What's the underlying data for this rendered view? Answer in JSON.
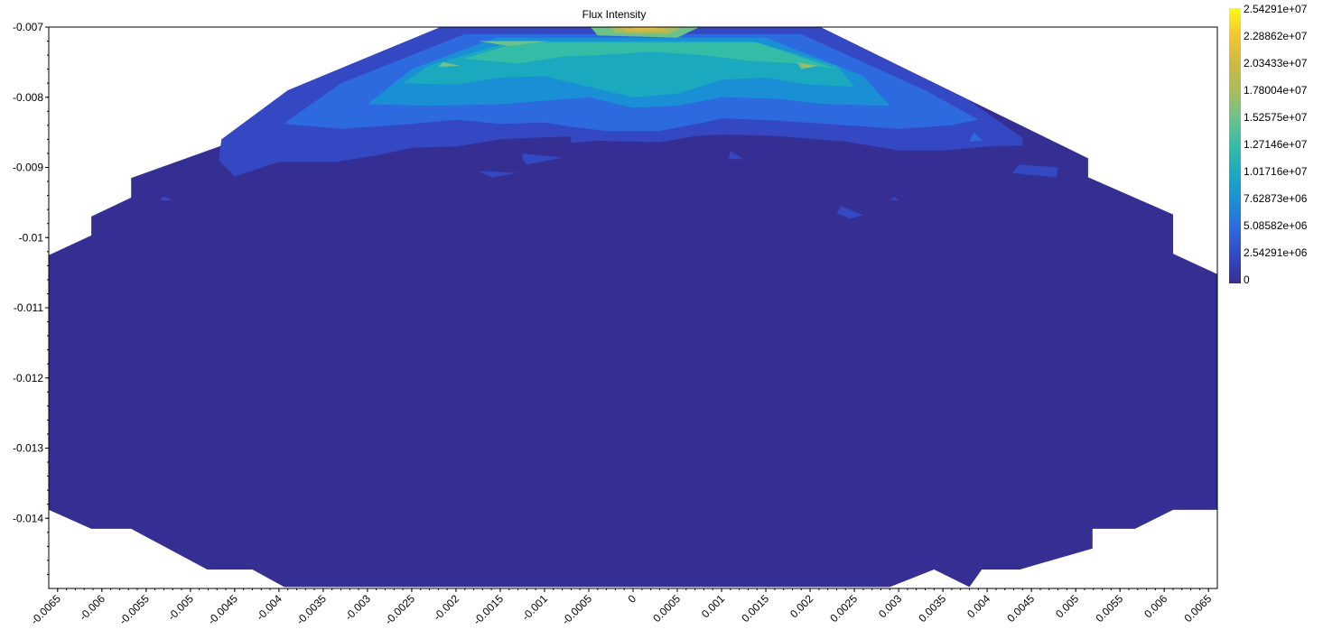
{
  "chart_data": {
    "type": "heatmap",
    "title": "Flux Intensity",
    "xlabel": "",
    "ylabel": "",
    "xlim": [
      -0.0066,
      0.0066
    ],
    "ylim": [
      -0.015,
      -0.007
    ],
    "x_ticks": [
      "-0.0065",
      "-0.006",
      "-0.0055",
      "-0.005",
      "-0.0045",
      "-0.004",
      "-0.0035",
      "-0.003",
      "-0.0025",
      "-0.002",
      "-0.0015",
      "-0.001",
      "-0.0005",
      "0",
      "0.0005",
      "0.001",
      "0.0015",
      "0.002",
      "0.0025",
      "0.003",
      "0.0035",
      "0.004",
      "0.0045",
      "0.005",
      "0.0055",
      "0.006",
      "0.0065"
    ],
    "x_tick_values": [
      -0.0065,
      -0.006,
      -0.0055,
      -0.005,
      -0.0045,
      -0.004,
      -0.0035,
      -0.003,
      -0.0025,
      -0.002,
      -0.0015,
      -0.001,
      -0.0005,
      0,
      0.0005,
      0.001,
      0.0015,
      0.002,
      0.0025,
      0.003,
      0.0035,
      0.004,
      0.0045,
      0.005,
      0.0055,
      0.006,
      0.0065
    ],
    "y_ticks": [
      "-0.007",
      "-0.008",
      "-0.009",
      "-0.01",
      "-0.011",
      "-0.012",
      "-0.013",
      "-0.014"
    ],
    "y_tick_values": [
      -0.007,
      -0.008,
      -0.009,
      -0.01,
      -0.011,
      -0.012,
      -0.013,
      -0.014
    ],
    "colorbar": {
      "labels": [
        "2.54291e+07",
        "2.28862e+07",
        "2.03433e+07",
        "1.78004e+07",
        "1.52575e+07",
        "1.27146e+07",
        "1.01716e+07",
        "7.62873e+06",
        "5.08582e+06",
        "2.54291e+06",
        "0"
      ],
      "min": 0,
      "max": 25429100,
      "colors": [
        "#fcfc12",
        "#f2c530",
        "#cfb946",
        "#a9bc5c",
        "#6cc28b",
        "#35bca6",
        "#1ba9c0",
        "#1b8fd5",
        "#2d6ae0",
        "#3448c4",
        "#352f94"
      ]
    },
    "domain_boundary": [
      [
        -0.0066,
        -0.01025
      ],
      [
        -0.00612,
        -0.00997
      ],
      [
        -0.00612,
        -0.0097
      ],
      [
        -0.00567,
        -0.00943
      ],
      [
        -0.00567,
        -0.00915
      ],
      [
        -0.00394,
        -0.00837
      ],
      [
        -0.00207,
        -0.00697
      ],
      [
        0.00207,
        -0.00697
      ],
      [
        0.00514,
        -0.00887
      ],
      [
        0.00514,
        -0.00914
      ],
      [
        0.0061,
        -0.00967
      ],
      [
        0.0061,
        -0.01023
      ],
      [
        0.0066,
        -0.01052
      ],
      [
        0.0066,
        -0.01388
      ],
      [
        0.0061,
        -0.01388
      ],
      [
        0.00567,
        -0.01415
      ],
      [
        0.00519,
        -0.01415
      ],
      [
        0.00519,
        -0.01443
      ],
      [
        0.00437,
        -0.01473
      ],
      [
        0.00394,
        -0.01473
      ],
      [
        0.0038,
        -0.01498
      ],
      [
        0.0034,
        -0.01473
      ],
      [
        0.0029,
        -0.01498
      ],
      [
        -0.00394,
        -0.01498
      ],
      [
        -0.0043,
        -0.01473
      ],
      [
        -0.00481,
        -0.01473
      ],
      [
        -0.00567,
        -0.01415
      ],
      [
        -0.00612,
        -0.01415
      ],
      [
        -0.0066,
        -0.01388
      ]
    ],
    "contours": [
      {
        "level": 2542910,
        "polygons": [
          [
            [
              -0.00212,
              -0.00697
            ],
            [
              -0.0039,
              -0.0079
            ],
            [
              -0.00465,
              -0.0086
            ],
            [
              -0.00468,
              -0.0089
            ],
            [
              -0.0045,
              -0.00913
            ],
            [
              -0.004,
              -0.00892
            ],
            [
              -0.00335,
              -0.00892
            ],
            [
              -0.0029,
              -0.00883
            ],
            [
              -0.0025,
              -0.00872
            ],
            [
              -0.002,
              -0.0087
            ],
            [
              -0.0015,
              -0.0086
            ],
            [
              -0.001,
              -0.00857
            ],
            [
              -0.0007,
              -0.00856
            ],
            [
              -0.0007,
              -0.00865
            ],
            [
              -0.0004,
              -0.00862
            ],
            [
              0.0003,
              -0.00864
            ],
            [
              0.00072,
              -0.00855
            ],
            [
              0.001,
              -0.00853
            ],
            [
              0.0016,
              -0.00855
            ],
            [
              0.0024,
              -0.00863
            ],
            [
              0.003,
              -0.00876
            ],
            [
              0.0035,
              -0.00876
            ],
            [
              0.004,
              -0.0087
            ],
            [
              0.0044,
              -0.00869
            ],
            [
              0.0044,
              -0.00858
            ],
            [
              0.0038,
              -0.00805
            ],
            [
              0.00207,
              -0.00697
            ]
          ],
          [
            [
              -0.00125,
              -0.0088
            ],
            [
              -0.0008,
              -0.00886
            ],
            [
              -0.0012,
              -0.00896
            ],
            [
              -0.00125,
              -0.00888
            ]
          ],
          [
            [
              -0.00175,
              -0.00905
            ],
            [
              -0.0013,
              -0.00908
            ],
            [
              -0.0016,
              -0.00914
            ]
          ],
          [
            [
              0.0011,
              -0.00877
            ],
            [
              0.00125,
              -0.00888
            ],
            [
              0.00108,
              -0.00888
            ]
          ],
          [
            [
              0.00436,
              -0.00896
            ],
            [
              0.0048,
              -0.009
            ],
            [
              0.00478,
              -0.00914
            ],
            [
              0.00428,
              -0.00908
            ]
          ],
          [
            [
              0.00235,
              -0.00955
            ],
            [
              0.0026,
              -0.00968
            ],
            [
              0.00245,
              -0.00973
            ],
            [
              0.0023,
              -0.00965
            ]
          ],
          [
            [
              -0.0053,
              -0.00941
            ],
            [
              -0.0052,
              -0.00947
            ],
            [
              -0.00535,
              -0.00947
            ]
          ],
          [
            [
              0.00295,
              -0.00942
            ],
            [
              0.003,
              -0.00947
            ],
            [
              0.0029,
              -0.00947
            ]
          ]
        ]
      },
      {
        "level": 5085820,
        "polygons": [
          [
            [
              -0.0019,
              -0.0071
            ],
            [
              -0.0033,
              -0.0078
            ],
            [
              -0.00395,
              -0.00838
            ],
            [
              -0.0033,
              -0.00845
            ],
            [
              -0.0025,
              -0.00838
            ],
            [
              -0.002,
              -0.00832
            ],
            [
              -0.0015,
              -0.00838
            ],
            [
              -0.001,
              -0.00836
            ],
            [
              -0.0007,
              -0.00842
            ],
            [
              -0.0003,
              -0.00848
            ],
            [
              0.0003,
              -0.00848
            ],
            [
              0.0008,
              -0.00836
            ],
            [
              0.001,
              -0.0083
            ],
            [
              0.0016,
              -0.00833
            ],
            [
              0.0024,
              -0.0084
            ],
            [
              0.003,
              -0.00845
            ],
            [
              0.0036,
              -0.0084
            ],
            [
              0.0039,
              -0.00832
            ],
            [
              0.0033,
              -0.0079
            ],
            [
              0.0019,
              -0.0071
            ]
          ],
          [
            [
              0.00385,
              -0.0085
            ],
            [
              0.00395,
              -0.00862
            ],
            [
              0.0038,
              -0.00863
            ]
          ]
        ]
      },
      {
        "level": 7628730,
        "polygons": [
          [
            [
              -0.00155,
              -0.00715
            ],
            [
              -0.0025,
              -0.0076
            ],
            [
              -0.003,
              -0.0081
            ],
            [
              -0.0023,
              -0.00812
            ],
            [
              -0.0015,
              -0.0081
            ],
            [
              -0.001,
              -0.00805
            ],
            [
              -0.0005,
              -0.008
            ],
            [
              0.0,
              -0.00815
            ],
            [
              0.0005,
              -0.00812
            ],
            [
              0.001,
              -0.008
            ],
            [
              0.0016,
              -0.00802
            ],
            [
              0.0022,
              -0.0081
            ],
            [
              0.0029,
              -0.00812
            ],
            [
              0.0026,
              -0.0077
            ],
            [
              0.0015,
              -0.00715
            ]
          ]
        ]
      },
      {
        "level": 10171600,
        "polygons": [
          [
            [
              -0.00135,
              -0.0072
            ],
            [
              -0.0023,
              -0.00755
            ],
            [
              -0.0026,
              -0.0078
            ],
            [
              -0.002,
              -0.00782
            ],
            [
              -0.0015,
              -0.00772
            ],
            [
              -0.001,
              -0.0077
            ],
            [
              -0.0005,
              -0.00785
            ],
            [
              0.0,
              -0.008
            ],
            [
              0.0005,
              -0.00795
            ],
            [
              0.001,
              -0.00775
            ],
            [
              0.0015,
              -0.00772
            ],
            [
              0.002,
              -0.00782
            ],
            [
              0.0025,
              -0.00785
            ],
            [
              0.0023,
              -0.00755
            ],
            [
              0.00135,
              -0.0072
            ]
          ]
        ]
      },
      {
        "level": 12714600,
        "polygons": [
          [
            [
              -0.0013,
              -0.00722
            ],
            [
              -0.0019,
              -0.00745
            ],
            [
              -0.0013,
              -0.00752
            ],
            [
              -0.0008,
              -0.00742
            ],
            [
              -0.0004,
              -0.0074
            ],
            [
              0.0002,
              -0.00735
            ],
            [
              0.0008,
              -0.0074
            ],
            [
              0.0013,
              -0.00748
            ],
            [
              0.0019,
              -0.00752
            ],
            [
              0.0023,
              -0.0076
            ],
            [
              0.0014,
              -0.00722
            ]
          ]
        ]
      },
      {
        "level": 15257500,
        "polygons": [
          [
            [
              -0.00175,
              -0.0072
            ],
            [
              -0.0014,
              -0.00727
            ],
            [
              -0.00095,
              -0.0072
            ]
          ],
          [
            [
              -0.00215,
              -0.0075
            ],
            [
              -0.00195,
              -0.00755
            ],
            [
              -0.0022,
              -0.00757
            ]
          ],
          [
            [
              0.00185,
              -0.0075
            ],
            [
              0.0021,
              -0.00755
            ],
            [
              0.0019,
              -0.0076
            ]
          ],
          [
            [
              -0.0005,
              -0.00697
            ],
            [
              -0.0004,
              -0.00712
            ],
            [
              0.0005,
              -0.00715
            ],
            [
              0.0008,
              -0.00697
            ]
          ]
        ]
      },
      {
        "level": 17800400,
        "polygons": [
          [
            [
              -0.0003,
              -0.00697
            ],
            [
              -0.0002,
              -0.00708
            ],
            [
              0.0004,
              -0.0071
            ],
            [
              0.0006,
              -0.00697
            ]
          ],
          [
            [
              0.0019,
              -0.00752
            ],
            [
              0.00205,
              -0.00756
            ],
            [
              0.00192,
              -0.00758
            ]
          ]
        ]
      },
      {
        "level": 20343300,
        "polygons": [
          [
            [
              -0.00018,
              -0.00697
            ],
            [
              -8e-05,
              -0.00706
            ],
            [
              0.00035,
              -0.00706
            ],
            [
              0.00045,
              -0.00697
            ]
          ]
        ]
      },
      {
        "level": 22886200,
        "polygons": [
          [
            [
              -5e-05,
              -0.00697
            ],
            [
              2e-05,
              -0.00703
            ],
            [
              0.00025,
              -0.00703
            ],
            [
              0.0003,
              -0.00697
            ]
          ]
        ]
      }
    ]
  }
}
